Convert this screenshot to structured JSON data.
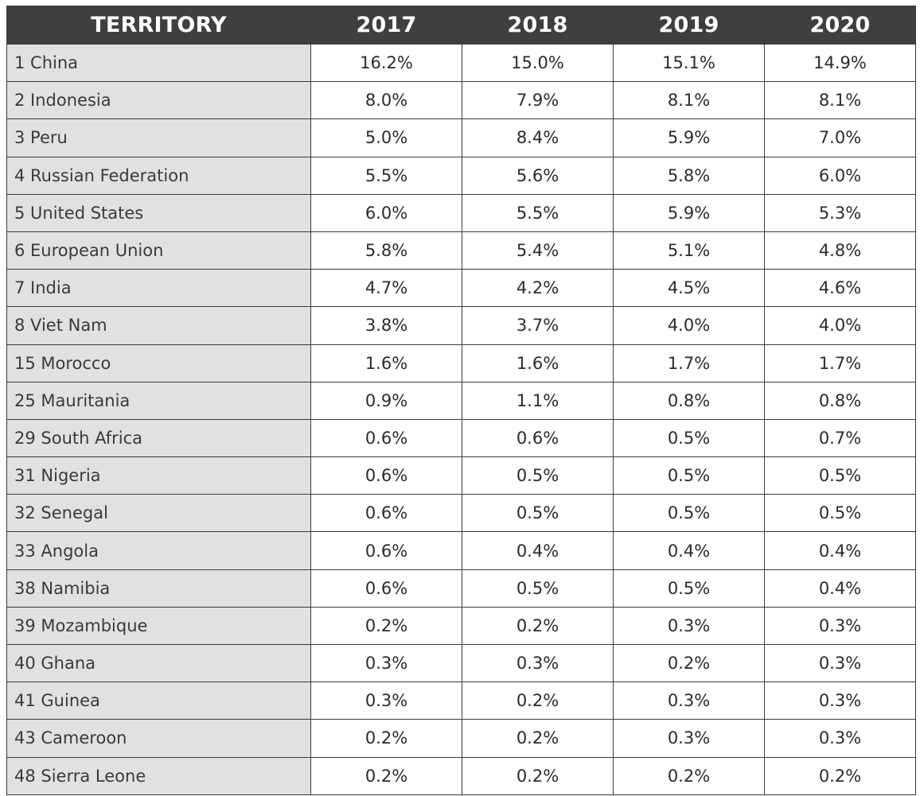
{
  "table": {
    "headers": [
      "TERRITORY",
      "2017",
      "2018",
      "2019",
      "2020"
    ],
    "rows": [
      {
        "territory": "1 China",
        "values": [
          "16.2%",
          "15.0%",
          "15.1%",
          "14.9%"
        ]
      },
      {
        "territory": "2 Indonesia",
        "values": [
          "8.0%",
          "7.9%",
          "8.1%",
          "8.1%"
        ]
      },
      {
        "territory": "3 Peru",
        "values": [
          "5.0%",
          "8.4%",
          "5.9%",
          "7.0%"
        ]
      },
      {
        "territory": "4 Russian Federation",
        "values": [
          "5.5%",
          "5.6%",
          "5.8%",
          "6.0%"
        ]
      },
      {
        "territory": "5 United States",
        "values": [
          "6.0%",
          "5.5%",
          "5.9%",
          "5.3%"
        ]
      },
      {
        "territory": "6 European Union",
        "values": [
          "5.8%",
          "5.4%",
          "5.1%",
          "4.8%"
        ]
      },
      {
        "territory": "7 India",
        "values": [
          "4.7%",
          "4.2%",
          "4.5%",
          "4.6%"
        ]
      },
      {
        "territory": "8 Viet Nam",
        "values": [
          "3.8%",
          "3.7%",
          "4.0%",
          "4.0%"
        ]
      },
      {
        "territory": "15 Morocco",
        "values": [
          "1.6%",
          "1.6%",
          "1.7%",
          "1.7%"
        ]
      },
      {
        "territory": "25 Mauritania",
        "values": [
          "0.9%",
          "1.1%",
          "0.8%",
          "0.8%"
        ]
      },
      {
        "territory": "29 South Africa",
        "values": [
          "0.6%",
          "0.6%",
          "0.5%",
          "0.7%"
        ]
      },
      {
        "territory": "31 Nigeria",
        "values": [
          "0.6%",
          "0.5%",
          "0.5%",
          "0.5%"
        ]
      },
      {
        "territory": "32 Senegal",
        "values": [
          "0.6%",
          "0.5%",
          "0.5%",
          "0.5%"
        ]
      },
      {
        "territory": "33 Angola",
        "values": [
          "0.6%",
          "0.4%",
          "0.4%",
          "0.4%"
        ]
      },
      {
        "territory": "38 Namibia",
        "values": [
          "0.6%",
          "0.5%",
          "0.5%",
          "0.4%"
        ]
      },
      {
        "territory": "39 Mozambique",
        "values": [
          "0.2%",
          "0.2%",
          "0.3%",
          "0.3%"
        ]
      },
      {
        "territory": "40 Ghana",
        "values": [
          "0.3%",
          "0.3%",
          "0.2%",
          "0.3%"
        ]
      },
      {
        "territory": "41 Guinea",
        "values": [
          "0.3%",
          "0.2%",
          "0.3%",
          "0.3%"
        ]
      },
      {
        "territory": "43 Cameroon",
        "values": [
          "0.2%",
          "0.2%",
          "0.3%",
          "0.3%"
        ]
      },
      {
        "territory": "48 Sierra Leone",
        "values": [
          "0.2%",
          "0.2%",
          "0.2%",
          "0.2%"
        ]
      }
    ]
  },
  "colors": {
    "header_bg": "#3f3f40",
    "header_text": "#ffffff",
    "name_cell_bg": "#e1e1e2",
    "border": "#3a3a3a"
  }
}
